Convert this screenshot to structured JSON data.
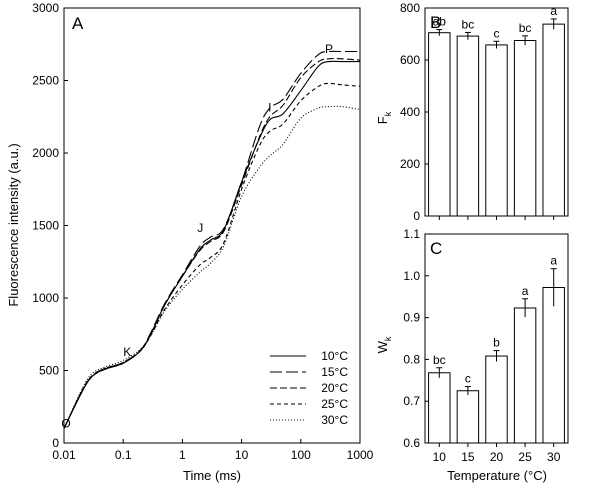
{
  "chart_data": [
    {
      "panel": "A",
      "type": "line",
      "xlabel": "Time (ms)",
      "ylabel": "Fluorescence intensity (a.u.)",
      "xscale": "log",
      "xlim": [
        0.01,
        1000
      ],
      "ylim": [
        0,
        3000
      ],
      "xticks": [
        "0.01",
        "0.1",
        "1",
        "10",
        "100",
        "1000"
      ],
      "yticks": [
        "0",
        "500",
        "1000",
        "1500",
        "2000",
        "2500",
        "3000"
      ],
      "legend_position": "bottom-right",
      "annotations": [
        {
          "text": "O",
          "x": 0.01,
          "y": 120
        },
        {
          "text": "K",
          "x": 0.1,
          "y": 560
        },
        {
          "text": "J",
          "x": 2,
          "y": 1400
        },
        {
          "text": "I",
          "x": 30,
          "y": 2230
        },
        {
          "text": "P",
          "x": 300,
          "y": 2650
        }
      ],
      "series": [
        {
          "name": "10°C",
          "dash": "solid",
          "x": [
            0.01,
            0.02,
            0.03,
            0.05,
            0.1,
            0.2,
            0.3,
            0.5,
            1,
            2,
            3,
            5,
            10,
            20,
            30,
            50,
            100,
            200,
            300,
            500,
            1000
          ],
          "y": [
            100,
            350,
            460,
            510,
            550,
            640,
            760,
            950,
            1150,
            1340,
            1400,
            1470,
            1800,
            2100,
            2230,
            2270,
            2430,
            2600,
            2630,
            2630,
            2630
          ]
        },
        {
          "name": "15°C",
          "dash": "long",
          "x": [
            0.01,
            0.02,
            0.03,
            0.05,
            0.1,
            0.2,
            0.3,
            0.5,
            1,
            2,
            3,
            5,
            10,
            20,
            30,
            50,
            100,
            200,
            300,
            500,
            1000
          ],
          "y": [
            100,
            355,
            465,
            515,
            555,
            645,
            770,
            960,
            1160,
            1360,
            1420,
            1480,
            1800,
            2180,
            2310,
            2370,
            2550,
            2680,
            2700,
            2700,
            2700
          ]
        },
        {
          "name": "20°C",
          "dash": "medium",
          "x": [
            0.01,
            0.02,
            0.03,
            0.05,
            0.1,
            0.2,
            0.3,
            0.5,
            1,
            2,
            3,
            5,
            10,
            20,
            30,
            50,
            100,
            200,
            300,
            500,
            1000
          ],
          "y": [
            100,
            355,
            460,
            510,
            550,
            640,
            760,
            950,
            1150,
            1330,
            1390,
            1460,
            1780,
            2110,
            2250,
            2330,
            2520,
            2630,
            2650,
            2650,
            2640
          ]
        },
        {
          "name": "25°C",
          "dash": "short",
          "x": [
            0.01,
            0.02,
            0.03,
            0.05,
            0.1,
            0.2,
            0.3,
            0.5,
            1,
            2,
            3,
            5,
            10,
            20,
            30,
            50,
            100,
            200,
            300,
            500,
            1000
          ],
          "y": [
            100,
            360,
            465,
            515,
            555,
            640,
            750,
            920,
            1090,
            1230,
            1280,
            1380,
            1750,
            2050,
            2150,
            2200,
            2360,
            2460,
            2480,
            2470,
            2460
          ]
        },
        {
          "name": "30°C",
          "dash": "dotted",
          "x": [
            0.01,
            0.02,
            0.03,
            0.05,
            0.1,
            0.2,
            0.3,
            0.5,
            1,
            2,
            3,
            5,
            10,
            20,
            30,
            50,
            100,
            200,
            300,
            500,
            1000
          ],
          "y": [
            100,
            370,
            480,
            525,
            570,
            650,
            750,
            910,
            1060,
            1180,
            1240,
            1360,
            1700,
            1900,
            1980,
            2060,
            2240,
            2310,
            2320,
            2320,
            2300
          ]
        }
      ]
    },
    {
      "panel": "B",
      "type": "bar",
      "ylabel": "F",
      "ylabel_sub": "k",
      "ylim": [
        0,
        800
      ],
      "yticks": [
        "0",
        "200",
        "400",
        "600",
        "800"
      ],
      "categories": [
        "10",
        "15",
        "20",
        "25",
        "30"
      ],
      "values": [
        705,
        692,
        658,
        675,
        738
      ],
      "errors": [
        12,
        14,
        14,
        18,
        20
      ],
      "letters": [
        "ab",
        "bc",
        "c",
        "bc",
        "a"
      ]
    },
    {
      "panel": "C",
      "type": "bar",
      "xlabel": "Temperature (°C)",
      "ylabel": "W",
      "ylabel_sub": "k",
      "ylim": [
        0.6,
        1.1
      ],
      "yticks": [
        "0.6",
        "0.7",
        "0.8",
        "0.9",
        "1.0",
        "1.1"
      ],
      "categories": [
        "10",
        "15",
        "20",
        "25",
        "30"
      ],
      "values": [
        0.768,
        0.725,
        0.808,
        0.923,
        0.972
      ],
      "errors": [
        0.012,
        0.01,
        0.013,
        0.022,
        0.045
      ],
      "letters": [
        "bc",
        "c",
        "b",
        "a",
        "a"
      ]
    }
  ]
}
